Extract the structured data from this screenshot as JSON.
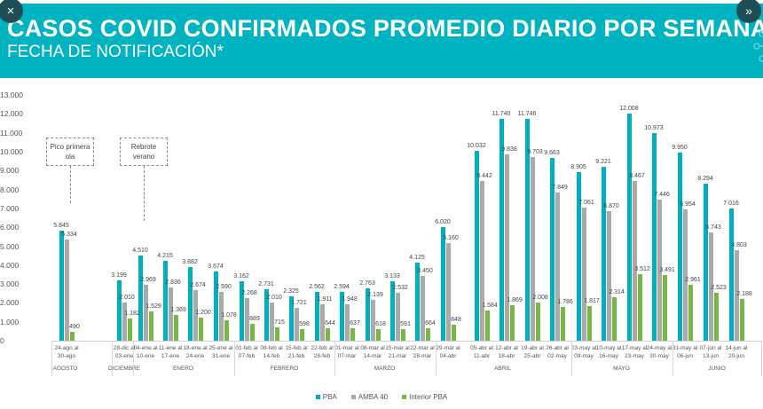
{
  "header": {
    "title": "CASOS COVID CONFIRMADOS PROMEDIO DIARIO POR SEMANA",
    "subtitle": "FECHA DE NOTIFICACIÓN*",
    "close_icon": "×",
    "next_icon": "»"
  },
  "colors": {
    "header_bg": "#00b3c1",
    "PBA": "#00b0bd",
    "AMBA 40": "#aaaaaa",
    "Interior PBA": "#76b843"
  },
  "chart_data": {
    "type": "bar",
    "title": "CASOS COVID CONFIRMADOS PROMEDIO DIARIO POR SEMANA",
    "subtitle": "FECHA DE NOTIFICACIÓN*",
    "xlabel": "",
    "ylabel": "",
    "ylim": [
      0,
      13000
    ],
    "yticks": [
      "0",
      "1.000",
      "2.000",
      "3.000",
      "4.000",
      "5.000",
      "6.000",
      "7.000",
      "8.000",
      "9.000",
      "10.000",
      "11.000",
      "12.000",
      "13.000"
    ],
    "grid": false,
    "legend_position": "bottom",
    "categories": [
      "24-ago al 30-ago",
      "28-dic al 03-ene",
      "04-ene al 10-ene",
      "11-ene al 17-ene",
      "18-ene al 24-ene",
      "25-ene al 31-ene",
      "01-feb al 07-feb",
      "08-feb al 14-feb",
      "15-feb al 21-feb",
      "22-feb al 28-feb",
      "01-mar al 07-mar",
      "08-mar al 14-mar",
      "15-mar al 21-mar",
      "22-mar al 28-mar",
      "29-mar al 04-abr",
      "05-abr al 11-abr",
      "12-abr al 18-abr",
      "19-abr al 25-abr",
      "26-abr al 02-may",
      "03-may al 09-may",
      "10-may al 16-may",
      "17-may al 23-may",
      "24-may al 30-may",
      "31-may al 06-jun",
      "07-jun al 13-jun",
      "14-jun al 20-jun"
    ],
    "month_groups": [
      {
        "label": "AGOSTO",
        "start": 0,
        "end": 0
      },
      {
        "label": "DICIEMBRE",
        "start": 1,
        "end": 1
      },
      {
        "label": "ENERO",
        "start": 2,
        "end": 5
      },
      {
        "label": "FEBRERO",
        "start": 6,
        "end": 9
      },
      {
        "label": "MARZO",
        "start": 10,
        "end": 13
      },
      {
        "label": "ABRIL",
        "start": 14,
        "end": 18
      },
      {
        "label": "MAYO",
        "start": 19,
        "end": 22
      },
      {
        "label": "JUNIO",
        "start": 23,
        "end": 25
      }
    ],
    "series": [
      {
        "name": "PBA",
        "values": [
          5845,
          3199,
          4510,
          4215,
          3882,
          3674,
          3162,
          2731,
          2325,
          2562,
          2594,
          2763,
          3133,
          4125,
          6020,
          10032,
          11740,
          11746,
          9663,
          8905,
          9221,
          12008,
          10973,
          9950,
          8294,
          7016
        ],
        "labels": [
          "5.845",
          "3.199",
          "4.510",
          "4.215",
          "3.882",
          "3.674",
          "3.162",
          "2.731",
          "2.325",
          "2.562",
          "2.594",
          "2.763",
          "3.133",
          "4.125",
          "6.020",
          "10.032",
          "11.740",
          "11.746",
          "9.663",
          "8.905",
          "9.221",
          "12.008",
          "10.973",
          "9.950",
          "8.294",
          "7.016"
        ]
      },
      {
        "name": "AMBA 40",
        "values": [
          5334,
          2010,
          2969,
          2836,
          2674,
          2590,
          2268,
          2010,
          1721,
          1911,
          1948,
          2139,
          2532,
          3450,
          5160,
          8442,
          9838,
          9703,
          7849,
          7061,
          6870,
          8467,
          7446,
          6954,
          5743,
          4803
        ],
        "labels": [
          "5.334",
          "2.010",
          "2.969",
          "2.836",
          "2.674",
          "2.590",
          "2.268",
          "2.010",
          "1.721",
          "1.911",
          "1.948",
          "2.139",
          "2.532",
          "3.450",
          "5.160",
          "8.442",
          "9.838",
          "9.703",
          "7.849",
          "7.061",
          "6.870",
          "8.467",
          "7.446",
          "6.954",
          "5.743",
          "4.803"
        ]
      },
      {
        "name": "Interior PBA",
        "values": [
          490,
          1182,
          1529,
          1369,
          1200,
          1078,
          889,
          715,
          598,
          644,
          637,
          618,
          591,
          664,
          848,
          1584,
          1869,
          2008,
          1786,
          1817,
          2314,
          3512,
          3491,
          2961,
          2523,
          2188
        ],
        "labels": [
          "490",
          "1.182",
          "1.529",
          "1.369",
          "1.200",
          "1.078",
          "889",
          "715",
          "598",
          "644",
          "637",
          "618",
          "591",
          "664",
          "848",
          "1.584",
          "1.869",
          "2.008",
          "1.786",
          "1.817",
          "2.314",
          "3.512",
          "3.491",
          "2.961",
          "2.523",
          "2.188"
        ]
      }
    ],
    "annotations": [
      {
        "text_line1": "Pico primera",
        "text_line2": "ola",
        "category_index": 0
      },
      {
        "text_line1": "Rebrote",
        "text_line2": "verano",
        "category_index": 2
      }
    ]
  },
  "legend": [
    {
      "label": "PBA",
      "color": "#00b0bd"
    },
    {
      "label": "AMBA 40",
      "color": "#aaaaaa"
    },
    {
      "label": "Interior PBA",
      "color": "#76b843"
    }
  ]
}
